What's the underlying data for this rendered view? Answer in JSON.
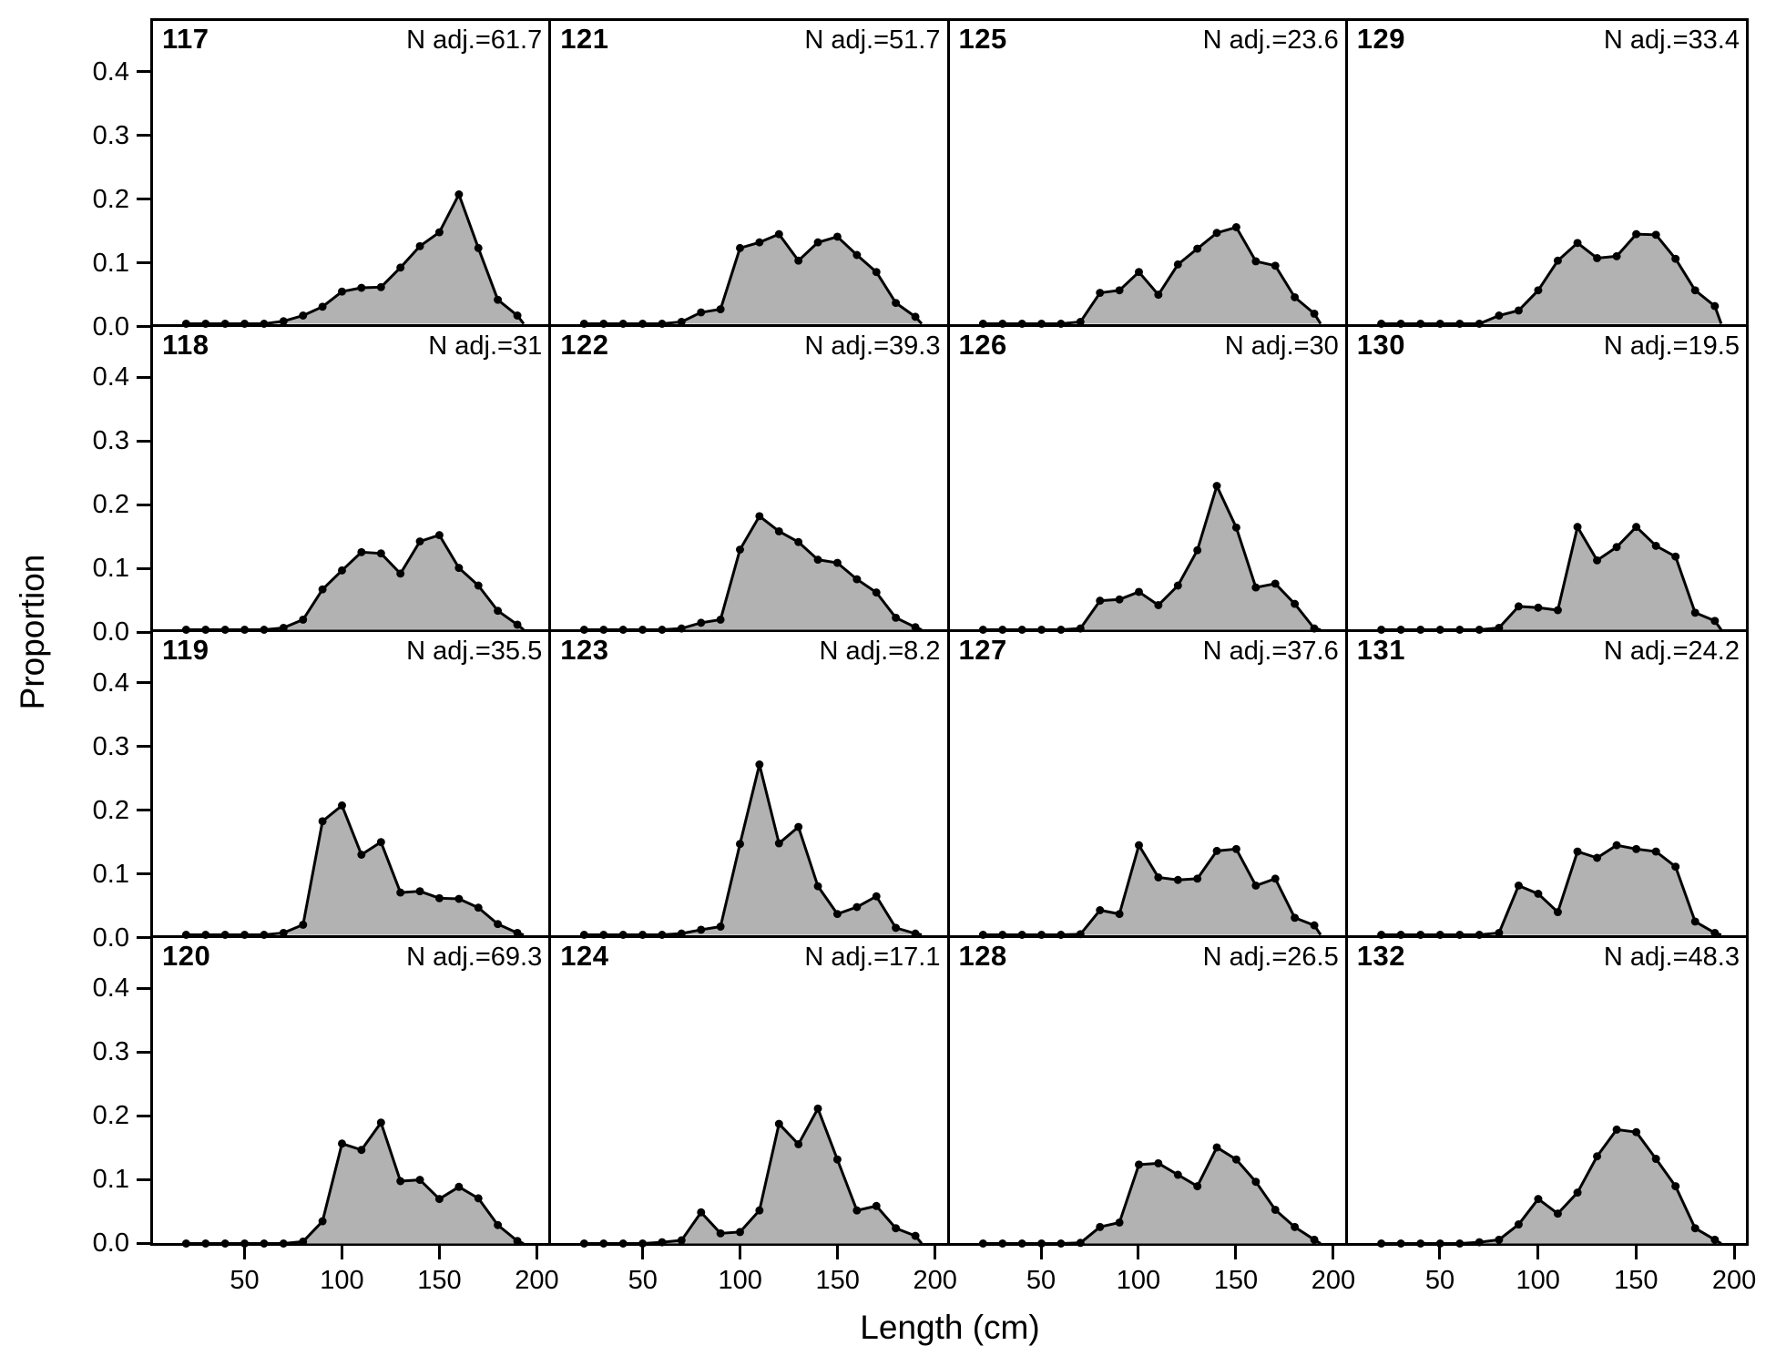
{
  "figure": {
    "xlabel": "Length (cm)",
    "ylabel": "Proportion",
    "x_tick_labels": [
      "50",
      "100",
      "150",
      "200"
    ],
    "y_tick_labels": [
      "0.0",
      "0.1",
      "0.2",
      "0.3",
      "0.4"
    ],
    "n_adj_prefix": "N adj.=",
    "colors": {
      "background": "#ffffff",
      "border": "#000000",
      "series_line": "#000000",
      "series_point": "#000000",
      "series_fill": "#b2b2b2"
    }
  },
  "chart_data": {
    "type": "area",
    "title": "",
    "xlabel": "Length (cm)",
    "ylabel": "Proportion",
    "x": [
      20,
      30,
      40,
      50,
      60,
      70,
      80,
      90,
      100,
      110,
      120,
      130,
      140,
      150,
      160,
      170,
      180,
      190
    ],
    "xlim": [
      3,
      206
    ],
    "ylim": [
      0,
      0.48
    ],
    "x_ticks": [
      50,
      100,
      150,
      200
    ],
    "y_ticks": [
      0.0,
      0.1,
      0.2,
      0.3,
      0.4
    ],
    "grid": "off",
    "legend_position": "none",
    "layout": {
      "rows": 4,
      "cols": 4,
      "order": "row-major"
    },
    "panels": [
      {
        "id": "117",
        "n_adj": "61.7",
        "values": [
          0,
          0,
          0,
          0,
          0,
          0.004,
          0.013,
          0.027,
          0.051,
          0.057,
          0.058,
          0.089,
          0.123,
          0.145,
          0.205,
          0.12,
          0.038,
          0.013
        ]
      },
      {
        "id": "121",
        "n_adj": "51.7",
        "values": [
          0,
          0,
          0,
          0,
          0,
          0.003,
          0.018,
          0.023,
          0.12,
          0.129,
          0.142,
          0.1,
          0.129,
          0.138,
          0.109,
          0.082,
          0.033,
          0.011
        ]
      },
      {
        "id": "125",
        "n_adj": "23.6",
        "values": [
          0,
          0,
          0,
          0,
          0,
          0.003,
          0.049,
          0.053,
          0.082,
          0.046,
          0.094,
          0.119,
          0.144,
          0.153,
          0.099,
          0.092,
          0.042,
          0.016
        ]
      },
      {
        "id": "129",
        "n_adj": "33.4",
        "values": [
          0,
          0,
          0,
          0,
          0,
          0,
          0.013,
          0.021,
          0.053,
          0.1,
          0.128,
          0.104,
          0.107,
          0.142,
          0.141,
          0.103,
          0.053,
          0.028
        ]
      },
      {
        "id": "118",
        "n_adj": "31",
        "values": [
          0,
          0,
          0,
          0,
          0,
          0.003,
          0.016,
          0.064,
          0.094,
          0.123,
          0.121,
          0.089,
          0.14,
          0.15,
          0.098,
          0.07,
          0.03,
          0.008
        ]
      },
      {
        "id": "122",
        "n_adj": "39.3",
        "values": [
          0,
          0,
          0,
          0,
          0,
          0.002,
          0.011,
          0.016,
          0.127,
          0.18,
          0.156,
          0.139,
          0.111,
          0.106,
          0.08,
          0.059,
          0.019,
          0.004
        ]
      },
      {
        "id": "126",
        "n_adj": "30",
        "values": [
          0,
          0,
          0,
          0,
          0,
          0.002,
          0.046,
          0.048,
          0.06,
          0.039,
          0.07,
          0.126,
          0.228,
          0.162,
          0.067,
          0.073,
          0.041,
          0.002
        ]
      },
      {
        "id": "130",
        "n_adj": "19.5",
        "values": [
          0,
          0,
          0,
          0,
          0,
          0,
          0.003,
          0.037,
          0.035,
          0.031,
          0.163,
          0.11,
          0.131,
          0.163,
          0.133,
          0.116,
          0.027,
          0.014
        ]
      },
      {
        "id": "119",
        "n_adj": "35.5",
        "values": [
          0,
          0,
          0,
          0,
          0,
          0.003,
          0.016,
          0.18,
          0.205,
          0.127,
          0.147,
          0.067,
          0.069,
          0.058,
          0.057,
          0.043,
          0.017,
          0.003
        ]
      },
      {
        "id": "123",
        "n_adj": "8.2",
        "values": [
          0,
          0,
          0,
          0,
          0,
          0.002,
          0.008,
          0.013,
          0.144,
          0.27,
          0.145,
          0.171,
          0.077,
          0.033,
          0.044,
          0.061,
          0.011,
          0.002
        ]
      },
      {
        "id": "127",
        "n_adj": "37.6",
        "values": [
          0,
          0,
          0,
          0,
          0,
          0.001,
          0.039,
          0.033,
          0.142,
          0.091,
          0.087,
          0.089,
          0.133,
          0.136,
          0.078,
          0.089,
          0.027,
          0.015
        ]
      },
      {
        "id": "131",
        "n_adj": "24.2",
        "values": [
          0,
          0,
          0,
          0,
          0,
          0,
          0.003,
          0.078,
          0.065,
          0.036,
          0.132,
          0.122,
          0.142,
          0.136,
          0.132,
          0.108,
          0.021,
          0.003
        ]
      },
      {
        "id": "120",
        "n_adj": "69.3",
        "values": [
          0,
          0,
          0,
          0,
          0,
          0,
          0.003,
          0.035,
          0.157,
          0.147,
          0.19,
          0.098,
          0.1,
          0.07,
          0.089,
          0.071,
          0.029,
          0.004
        ]
      },
      {
        "id": "124",
        "n_adj": "17.1",
        "values": [
          0,
          0,
          0,
          0,
          0.002,
          0.005,
          0.049,
          0.016,
          0.018,
          0.052,
          0.188,
          0.156,
          0.212,
          0.132,
          0.052,
          0.059,
          0.024,
          0.012
        ]
      },
      {
        "id": "128",
        "n_adj": "26.5",
        "values": [
          0,
          0,
          0,
          0,
          0,
          0.001,
          0.026,
          0.033,
          0.124,
          0.126,
          0.108,
          0.09,
          0.151,
          0.132,
          0.097,
          0.053,
          0.026,
          0.006
        ]
      },
      {
        "id": "132",
        "n_adj": "48.3",
        "values": [
          0,
          0,
          0,
          0,
          0,
          0.002,
          0.006,
          0.03,
          0.07,
          0.047,
          0.08,
          0.137,
          0.179,
          0.175,
          0.133,
          0.09,
          0.024,
          0.006
        ]
      }
    ]
  }
}
